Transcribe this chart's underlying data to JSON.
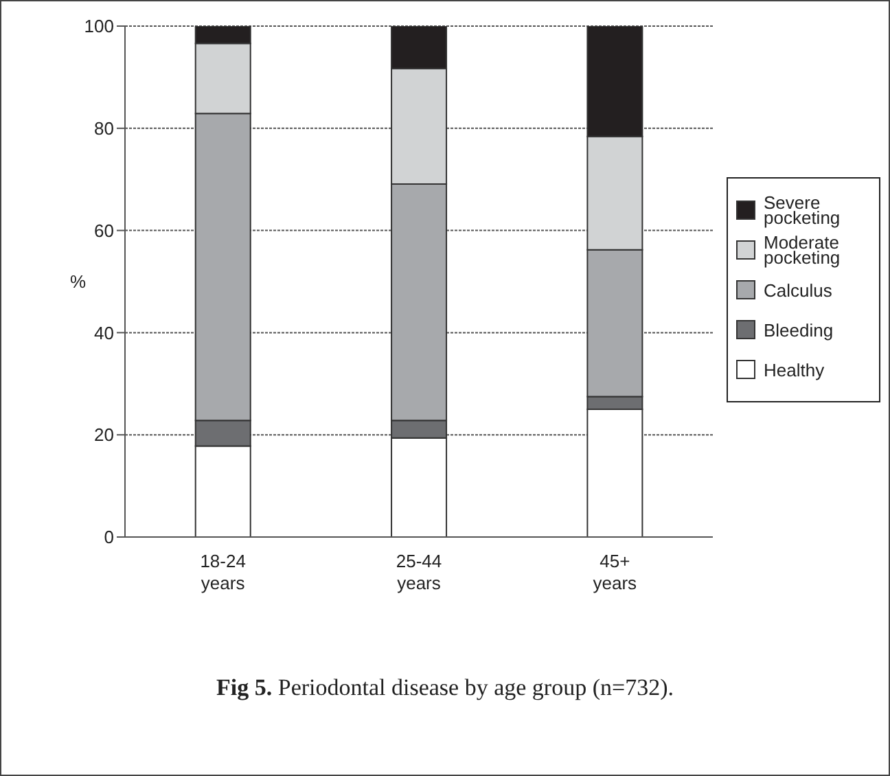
{
  "chart_data": {
    "type": "bar",
    "stacked": true,
    "ylabel": "%",
    "categories": [
      "18-24 years",
      "25-44 years",
      "45+ years"
    ],
    "series": [
      {
        "name": "Healthy",
        "color": "#ffffff",
        "values": [
          17.8,
          19.4,
          25.0
        ]
      },
      {
        "name": "Bleeding",
        "color": "#6d6e71",
        "values": [
          5.0,
          3.4,
          2.5
        ]
      },
      {
        "name": "Calculus",
        "color": "#a7a9ac",
        "values": [
          60.1,
          46.3,
          28.7
        ]
      },
      {
        "name": "Moderate pocketing",
        "color": "#d1d3d4",
        "values": [
          13.7,
          22.6,
          22.2
        ]
      },
      {
        "name": "Severe pocketing",
        "color": "#231f20",
        "values": [
          3.4,
          8.3,
          21.6
        ]
      }
    ],
    "ylim": [
      0,
      100
    ],
    "yticks": [
      0,
      20,
      40,
      60,
      80,
      100
    ],
    "grid": "y",
    "legend": "right",
    "annotations": [
      "Fig 5. Periodontal disease by age group (n=732)."
    ]
  }
}
